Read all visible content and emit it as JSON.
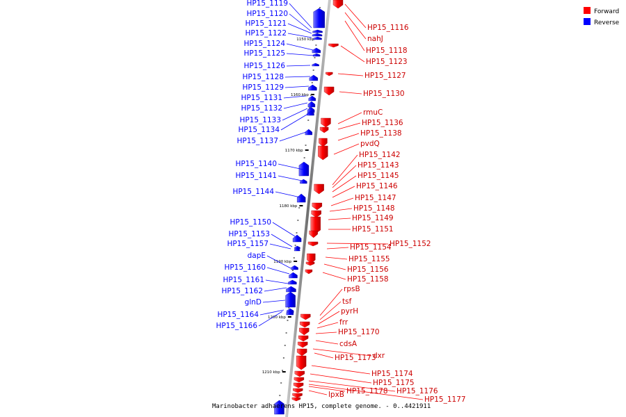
{
  "legend": {
    "forward": {
      "label": "Forward",
      "color": "#ff0000"
    },
    "reverse": {
      "label": "Reverse",
      "color": "#0000ff"
    }
  },
  "caption": "Marinobacter adhaerens HP15, complete genome. - 0..4421911",
  "scale_ticks": [
    "1150 kbp",
    "1160 kbp",
    "1170 kbp",
    "1180 kbp",
    "1190 kbp",
    "1200 kbp",
    "1210 kbp"
  ],
  "reverse_genes": [
    "HP15_1119",
    "HP15_1120",
    "HP15_1121",
    "HP15_1122",
    "HP15_1124",
    "HP15_1125",
    "HP15_1126",
    "HP15_1128",
    "HP15_1129",
    "HP15_1131",
    "HP15_1132",
    "HP15_1133",
    "HP15_1134",
    "HP15_1137",
    "HP15_1140",
    "HP15_1141",
    "HP15_1144",
    "HP15_1150",
    "HP15_1153",
    "HP15_1157",
    "dapE",
    "HP15_1160",
    "HP15_1161",
    "HP15_1162",
    "glnD",
    "HP15_1164",
    "HP15_1166"
  ],
  "forward_genes": [
    "HP15_1116",
    "nahJ",
    "HP15_1118",
    "HP15_1123",
    "HP15_1127",
    "HP15_1130",
    "rmuC",
    "HP15_1136",
    "HP15_1138",
    "pvdQ",
    "HP15_1142",
    "HP15_1143",
    "HP15_1145",
    "HP15_1146",
    "HP15_1147",
    "HP15_1148",
    "HP15_1149",
    "HP15_1151",
    "HP15_1152",
    "HP15_1154",
    "HP15_1155",
    "HP15_1156",
    "HP15_1158",
    "rpsB",
    "tsf",
    "pyrH",
    "frr",
    "HP15_1170",
    "cdsA",
    "dxr",
    "HP15_1173",
    "HP15_1174",
    "HP15_1175",
    "HP15_1176",
    "HP15_1177",
    "HP15_1178",
    "lpxB"
  ]
}
